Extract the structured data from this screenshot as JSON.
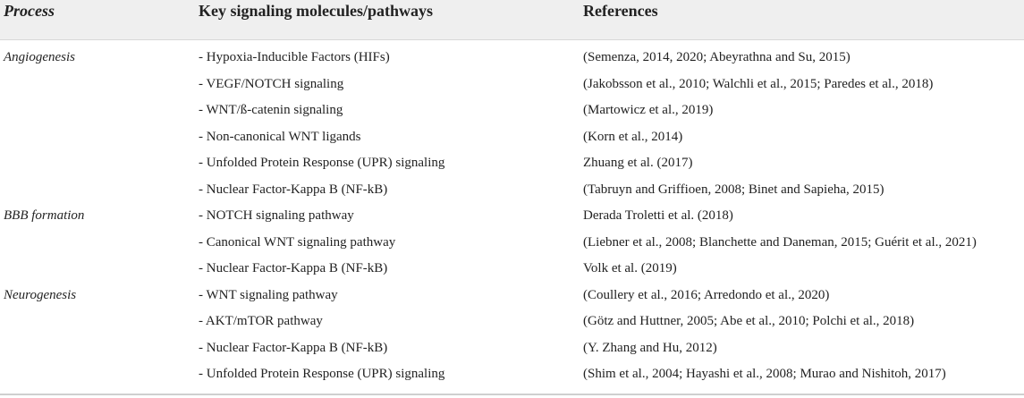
{
  "table": {
    "header": [
      "Process",
      "Key signaling molecules/pathways",
      "References"
    ],
    "groups": [
      {
        "process": "Angiogenesis",
        "items": [
          {
            "molecule": "- Hypoxia-Inducible Factors (HIFs)",
            "reference": "(Semenza, 2014, 2020; Abeyrathna and Su, 2015)"
          },
          {
            "molecule": "- VEGF/NOTCH signaling",
            "reference": "(Jakobsson et al., 2010; Walchli et al., 2015; Paredes et al., 2018)"
          },
          {
            "molecule": "- WNT/ß-catenin signaling",
            "reference": "(Martowicz et al., 2019)"
          },
          {
            "molecule": "- Non-canonical WNT ligands",
            "reference": "(Korn et al., 2014)"
          },
          {
            "molecule": "- Unfolded Protein Response (UPR) signaling",
            "reference": "Zhuang et al. (2017)"
          },
          {
            "molecule": "- Nuclear Factor-Kappa B (NF-kB)",
            "reference": "(Tabruyn and Griffioen, 2008; Binet and Sapieha, 2015)"
          }
        ]
      },
      {
        "process": "BBB formation",
        "items": [
          {
            "molecule": "- NOTCH signaling pathway",
            "reference": "Derada Troletti et al. (2018)"
          },
          {
            "molecule": "- Canonical WNT signaling pathway",
            "reference": "(Liebner et al., 2008; Blanchette and Daneman, 2015; Guérit et al., 2021)"
          },
          {
            "molecule": "- Nuclear Factor-Kappa B (NF-kB)",
            "reference": "Volk et al. (2019)"
          }
        ]
      },
      {
        "process": "Neurogenesis",
        "items": [
          {
            "molecule": "- WNT signaling pathway",
            "reference": "(Coullery et al., 2016; Arredondo et al., 2020)"
          },
          {
            "molecule": "- AKT/mTOR pathway",
            "reference": "(Götz and Huttner, 2005; Abe et al., 2010; Polchi et al., 2018)"
          },
          {
            "molecule": "- Nuclear Factor-Kappa B (NF-kB)",
            "reference": "(Y. Zhang and Hu, 2012)"
          },
          {
            "molecule": "- Unfolded Protein Response (UPR) signaling",
            "reference": "(Shim et al., 2004; Hayashi et al., 2008; Murao and Nishitoh, 2017)"
          }
        ]
      }
    ]
  }
}
